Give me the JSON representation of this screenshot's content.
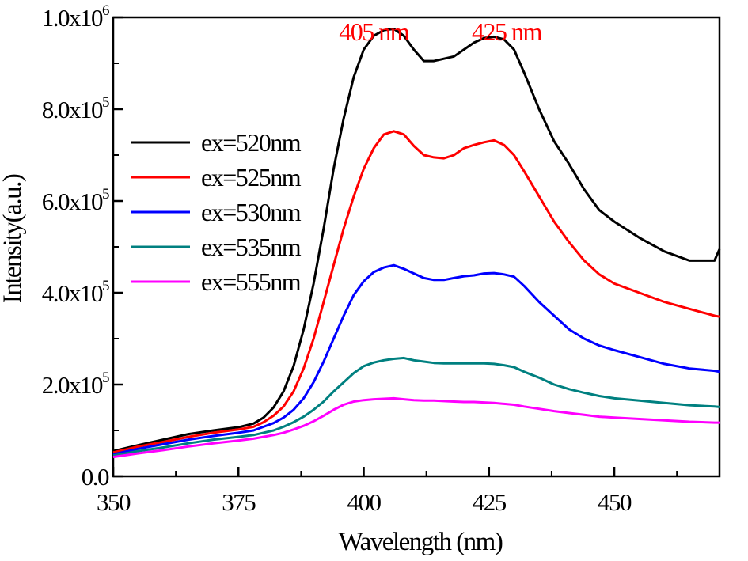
{
  "chart_data": {
    "type": "line",
    "xlabel": "Wavelength (nm)",
    "ylabel": "Intensity(a.u.)",
    "xlim": [
      350,
      471
    ],
    "ylim": [
      0,
      1000000
    ],
    "x_ticks": [
      350,
      375,
      400,
      425,
      450
    ],
    "x_tick_labels": [
      "350",
      "375",
      "400",
      "425",
      "450"
    ],
    "y_ticks": [
      {
        "value": 0,
        "mantissa": "0.0",
        "exp": ""
      },
      {
        "value": 200000,
        "mantissa": "2.0x10",
        "exp": "5"
      },
      {
        "value": 400000,
        "mantissa": "4.0x10",
        "exp": "5"
      },
      {
        "value": 600000,
        "mantissa": "6.0x10",
        "exp": "5"
      },
      {
        "value": 800000,
        "mantissa": "8.0x10",
        "exp": "5"
      },
      {
        "value": 1000000,
        "mantissa": "1.0x10",
        "exp": "6"
      }
    ],
    "annotations": [
      {
        "text": "405 nm",
        "x": 402,
        "y": 955000,
        "color": "#ff0000"
      },
      {
        "text": "425 nm",
        "x": 428.5,
        "y": 955000,
        "color": "#ff0000"
      }
    ],
    "legend_position": "left-middle",
    "grid": false,
    "series": [
      {
        "name": "ex=520nm",
        "color": "#000000",
        "points": [
          [
            350,
            55000
          ],
          [
            355,
            68000
          ],
          [
            360,
            80000
          ],
          [
            365,
            92000
          ],
          [
            370,
            100000
          ],
          [
            375,
            107000
          ],
          [
            378,
            115000
          ],
          [
            380,
            128000
          ],
          [
            382,
            150000
          ],
          [
            384,
            185000
          ],
          [
            386,
            240000
          ],
          [
            388,
            320000
          ],
          [
            390,
            420000
          ],
          [
            392,
            540000
          ],
          [
            394,
            670000
          ],
          [
            396,
            780000
          ],
          [
            398,
            870000
          ],
          [
            400,
            930000
          ],
          [
            402,
            960000
          ],
          [
            404,
            972000
          ],
          [
            406,
            975000
          ],
          [
            408,
            960000
          ],
          [
            410,
            930000
          ],
          [
            412,
            905000
          ],
          [
            414,
            905000
          ],
          [
            416,
            910000
          ],
          [
            418,
            915000
          ],
          [
            420,
            930000
          ],
          [
            422,
            945000
          ],
          [
            424,
            955000
          ],
          [
            426,
            958000
          ],
          [
            428,
            952000
          ],
          [
            430,
            930000
          ],
          [
            432,
            880000
          ],
          [
            435,
            800000
          ],
          [
            438,
            730000
          ],
          [
            441,
            680000
          ],
          [
            444,
            625000
          ],
          [
            447,
            580000
          ],
          [
            450,
            555000
          ],
          [
            455,
            520000
          ],
          [
            460,
            490000
          ],
          [
            465,
            470000
          ],
          [
            470,
            470000
          ],
          [
            471,
            495000
          ]
        ]
      },
      {
        "name": "ex=525nm",
        "color": "#ff0000",
        "points": [
          [
            350,
            52000
          ],
          [
            355,
            65000
          ],
          [
            360,
            75000
          ],
          [
            365,
            86000
          ],
          [
            370,
            95000
          ],
          [
            375,
            102000
          ],
          [
            378,
            108000
          ],
          [
            380,
            118000
          ],
          [
            382,
            132000
          ],
          [
            384,
            152000
          ],
          [
            386,
            185000
          ],
          [
            388,
            235000
          ],
          [
            390,
            300000
          ],
          [
            392,
            380000
          ],
          [
            394,
            460000
          ],
          [
            396,
            540000
          ],
          [
            398,
            610000
          ],
          [
            400,
            670000
          ],
          [
            402,
            715000
          ],
          [
            404,
            745000
          ],
          [
            406,
            752000
          ],
          [
            408,
            745000
          ],
          [
            410,
            720000
          ],
          [
            412,
            700000
          ],
          [
            414,
            695000
          ],
          [
            416,
            693000
          ],
          [
            418,
            700000
          ],
          [
            420,
            715000
          ],
          [
            422,
            722000
          ],
          [
            424,
            728000
          ],
          [
            426,
            732000
          ],
          [
            428,
            722000
          ],
          [
            430,
            700000
          ],
          [
            432,
            665000
          ],
          [
            435,
            610000
          ],
          [
            438,
            555000
          ],
          [
            441,
            510000
          ],
          [
            444,
            470000
          ],
          [
            447,
            440000
          ],
          [
            450,
            420000
          ],
          [
            455,
            400000
          ],
          [
            460,
            380000
          ],
          [
            465,
            365000
          ],
          [
            470,
            350000
          ],
          [
            471,
            348000
          ]
        ]
      },
      {
        "name": "ex=530nm",
        "color": "#0000ff",
        "points": [
          [
            350,
            48000
          ],
          [
            355,
            60000
          ],
          [
            360,
            70000
          ],
          [
            365,
            80000
          ],
          [
            370,
            88000
          ],
          [
            375,
            95000
          ],
          [
            378,
            100000
          ],
          [
            380,
            108000
          ],
          [
            382,
            116000
          ],
          [
            384,
            128000
          ],
          [
            386,
            145000
          ],
          [
            388,
            170000
          ],
          [
            390,
            205000
          ],
          [
            392,
            250000
          ],
          [
            394,
            300000
          ],
          [
            396,
            350000
          ],
          [
            398,
            395000
          ],
          [
            400,
            425000
          ],
          [
            402,
            445000
          ],
          [
            404,
            455000
          ],
          [
            406,
            460000
          ],
          [
            408,
            452000
          ],
          [
            410,
            442000
          ],
          [
            412,
            432000
          ],
          [
            414,
            428000
          ],
          [
            416,
            428000
          ],
          [
            418,
            432000
          ],
          [
            420,
            436000
          ],
          [
            422,
            438000
          ],
          [
            424,
            442000
          ],
          [
            426,
            443000
          ],
          [
            428,
            440000
          ],
          [
            430,
            435000
          ],
          [
            432,
            415000
          ],
          [
            435,
            380000
          ],
          [
            438,
            350000
          ],
          [
            441,
            320000
          ],
          [
            444,
            300000
          ],
          [
            447,
            285000
          ],
          [
            450,
            275000
          ],
          [
            455,
            260000
          ],
          [
            460,
            245000
          ],
          [
            465,
            235000
          ],
          [
            470,
            230000
          ],
          [
            471,
            228000
          ]
        ]
      },
      {
        "name": "ex=535nm",
        "color": "#008080",
        "points": [
          [
            350,
            45000
          ],
          [
            355,
            55000
          ],
          [
            360,
            63000
          ],
          [
            365,
            72000
          ],
          [
            370,
            80000
          ],
          [
            375,
            86000
          ],
          [
            378,
            90000
          ],
          [
            380,
            95000
          ],
          [
            382,
            100000
          ],
          [
            384,
            108000
          ],
          [
            386,
            118000
          ],
          [
            388,
            130000
          ],
          [
            390,
            145000
          ],
          [
            392,
            163000
          ],
          [
            394,
            185000
          ],
          [
            396,
            205000
          ],
          [
            398,
            225000
          ],
          [
            400,
            240000
          ],
          [
            402,
            248000
          ],
          [
            404,
            253000
          ],
          [
            406,
            256000
          ],
          [
            408,
            258000
          ],
          [
            410,
            253000
          ],
          [
            412,
            250000
          ],
          [
            414,
            247000
          ],
          [
            416,
            246000
          ],
          [
            418,
            246000
          ],
          [
            420,
            246000
          ],
          [
            422,
            246000
          ],
          [
            424,
            246000
          ],
          [
            426,
            245000
          ],
          [
            428,
            242000
          ],
          [
            430,
            238000
          ],
          [
            432,
            228000
          ],
          [
            435,
            215000
          ],
          [
            438,
            200000
          ],
          [
            441,
            190000
          ],
          [
            444,
            182000
          ],
          [
            447,
            175000
          ],
          [
            450,
            170000
          ],
          [
            455,
            165000
          ],
          [
            460,
            160000
          ],
          [
            465,
            155000
          ],
          [
            470,
            152000
          ],
          [
            471,
            151000
          ]
        ]
      },
      {
        "name": "ex=555nm",
        "color": "#ff00ff",
        "points": [
          [
            350,
            42000
          ],
          [
            355,
            50000
          ],
          [
            360,
            57000
          ],
          [
            365,
            65000
          ],
          [
            370,
            72000
          ],
          [
            375,
            78000
          ],
          [
            378,
            82000
          ],
          [
            380,
            86000
          ],
          [
            382,
            90000
          ],
          [
            384,
            95000
          ],
          [
            386,
            102000
          ],
          [
            388,
            110000
          ],
          [
            390,
            120000
          ],
          [
            392,
            132000
          ],
          [
            394,
            145000
          ],
          [
            396,
            156000
          ],
          [
            398,
            163000
          ],
          [
            400,
            166000
          ],
          [
            402,
            168000
          ],
          [
            404,
            169000
          ],
          [
            406,
            170000
          ],
          [
            408,
            168000
          ],
          [
            410,
            166000
          ],
          [
            412,
            165000
          ],
          [
            414,
            165000
          ],
          [
            416,
            164000
          ],
          [
            418,
            163000
          ],
          [
            420,
            162000
          ],
          [
            422,
            162000
          ],
          [
            424,
            161000
          ],
          [
            426,
            160000
          ],
          [
            428,
            158000
          ],
          [
            430,
            156000
          ],
          [
            432,
            152000
          ],
          [
            435,
            147000
          ],
          [
            438,
            142000
          ],
          [
            441,
            138000
          ],
          [
            444,
            134000
          ],
          [
            447,
            130000
          ],
          [
            450,
            128000
          ],
          [
            455,
            125000
          ],
          [
            460,
            122000
          ],
          [
            465,
            119000
          ],
          [
            470,
            117000
          ],
          [
            471,
            117000
          ]
        ]
      }
    ]
  }
}
